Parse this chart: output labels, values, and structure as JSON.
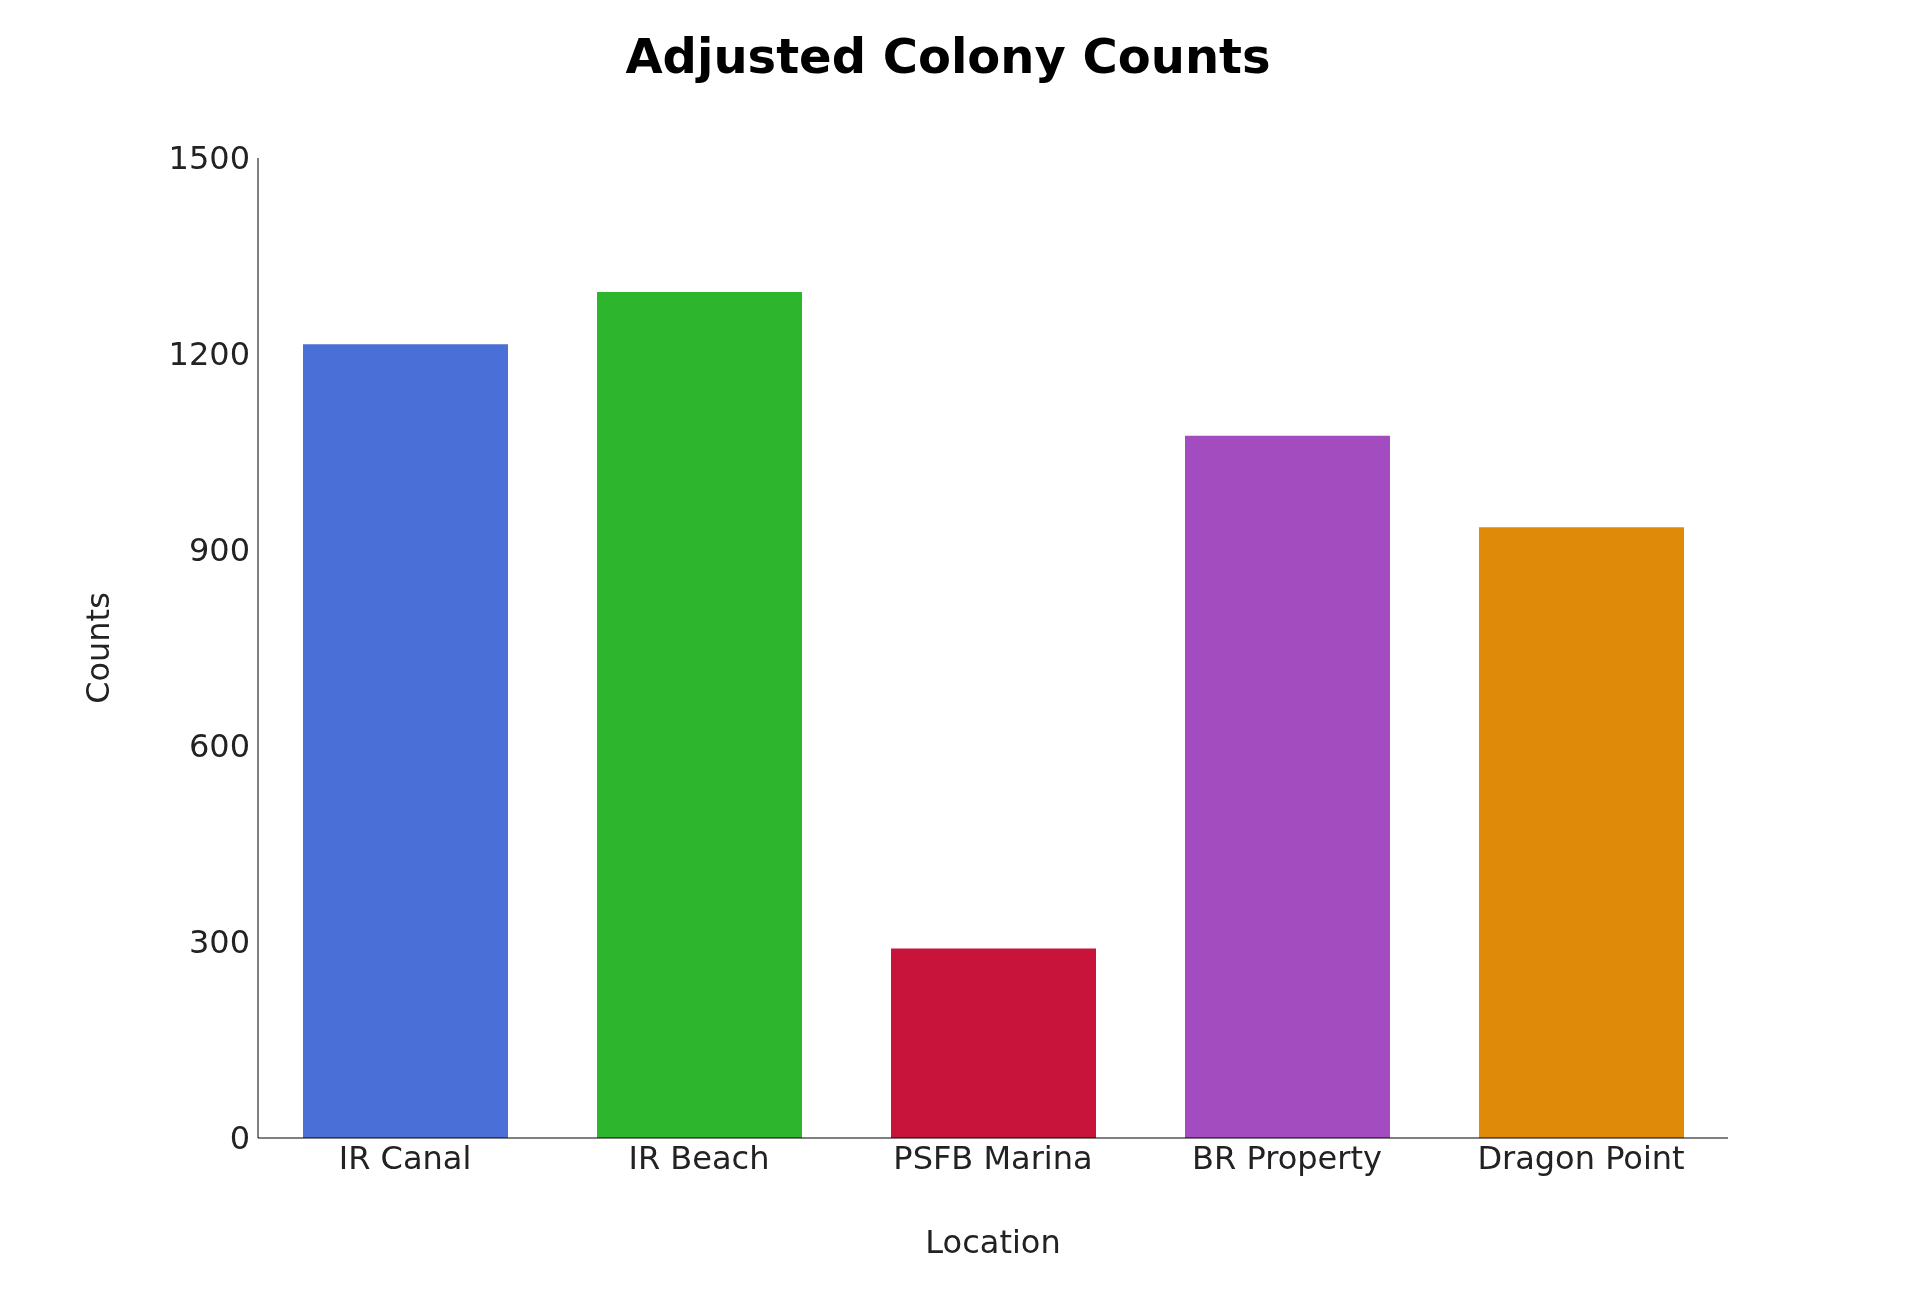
{
  "chart_data": {
    "type": "bar",
    "title": "Adjusted Colony Counts",
    "xlabel": "Location",
    "ylabel": "Counts",
    "categories": [
      "IR Canal",
      "IR Beach",
      "PSFB Marina",
      "BR Property",
      "Dragon Point"
    ],
    "values": [
      1215,
      1295,
      290,
      1075,
      935
    ],
    "colors": [
      "#4a6fd6",
      "#2db52d",
      "#c8143a",
      "#a34cbf",
      "#e08a0a"
    ],
    "ylim": [
      0,
      1500
    ],
    "yticks": [
      0,
      300,
      600,
      900,
      1200,
      1500
    ],
    "grid": false,
    "legend": false
  }
}
